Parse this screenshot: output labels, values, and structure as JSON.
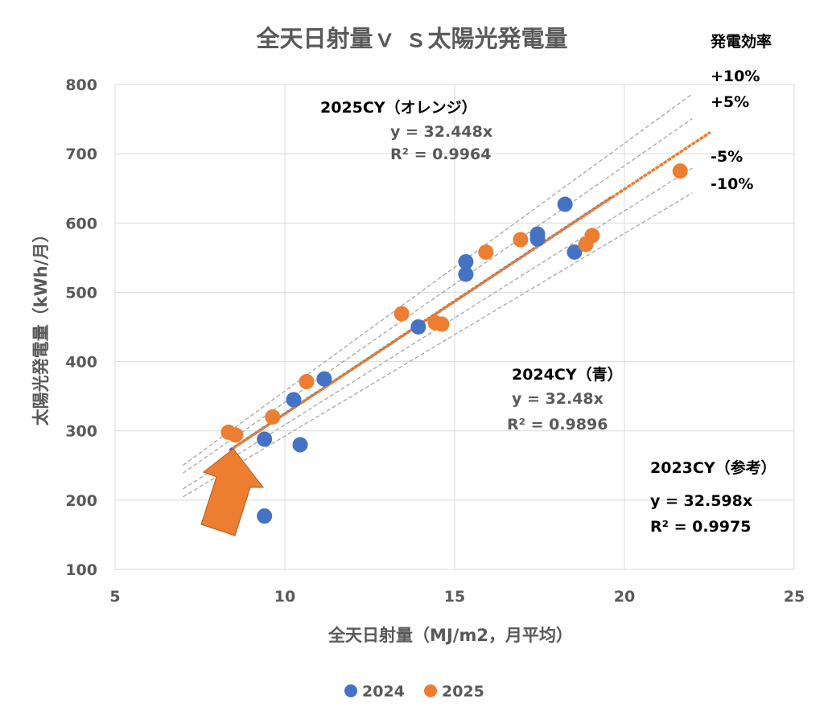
{
  "chart_data": {
    "type": "scatter",
    "title": "全天日射量ｖ ｓ太陽光発電量",
    "xlabel": "全天日射量（MJ/m2，月平均）",
    "ylabel": "太陽光発電量（kWh/月）",
    "xlim": [
      5,
      25
    ],
    "ylim": [
      100,
      800
    ],
    "xticks": [
      "5",
      "10",
      "15",
      "20",
      "25"
    ],
    "yticks": [
      "100",
      "200",
      "300",
      "400",
      "500",
      "600",
      "700",
      "800"
    ],
    "grid": true,
    "legend_position": "bottom",
    "series": [
      {
        "name": "2024",
        "color": "#4472C4",
        "points": [
          [
            9.4,
            288
          ],
          [
            10.45,
            280
          ],
          [
            9.4,
            177
          ],
          [
            10.26,
            345
          ],
          [
            11.16,
            375
          ],
          [
            13.93,
            450
          ],
          [
            15.33,
            544
          ],
          [
            15.33,
            526
          ],
          [
            17.44,
            584
          ],
          [
            17.44,
            577
          ],
          [
            18.25,
            627
          ],
          [
            18.53,
            558
          ]
        ],
        "trend": {
          "slope": 32.48,
          "x_range": [
            8.4,
            19.6
          ]
        }
      },
      {
        "name": "2025",
        "color": "#ED7D31",
        "points": [
          [
            8.34,
            298
          ],
          [
            8.55,
            294
          ],
          [
            9.64,
            320
          ],
          [
            10.64,
            371
          ],
          [
            13.44,
            469
          ],
          [
            14.43,
            456
          ],
          [
            14.62,
            454
          ],
          [
            15.92,
            558
          ],
          [
            16.94,
            576
          ],
          [
            18.86,
            569
          ],
          [
            19.05,
            582
          ],
          [
            21.64,
            675
          ]
        ],
        "trend": {
          "slope": 32.448,
          "x_range": [
            8.5,
            22.5
          ]
        }
      }
    ],
    "reference_lines": {
      "base_slope": 32.5,
      "factors": [
        1.1,
        1.05,
        0.95,
        0.9
      ],
      "x_range": [
        7,
        22
      ],
      "color": "#A6A6A6"
    },
    "annotations": {
      "y2025_label": "2025CY（オレンジ）",
      "y2025_eq": "y = 32.448x",
      "y2025_r2": "R² = 0.9964",
      "y2024_label": "2024CY（青）",
      "y2024_eq": "y = 32.48x",
      "y2024_r2": "R² = 0.9896",
      "y2023_label": "2023CY（参考）",
      "y2023_eq": "y = 32.598x",
      "y2023_r2": "R² = 0.9975",
      "efficiency_title": "発電効率",
      "eff_p10": "+10%",
      "eff_p5": "+5%",
      "eff_m5": "-5%",
      "eff_m10": "-10%"
    },
    "arrow_color": "#ED7D31"
  }
}
